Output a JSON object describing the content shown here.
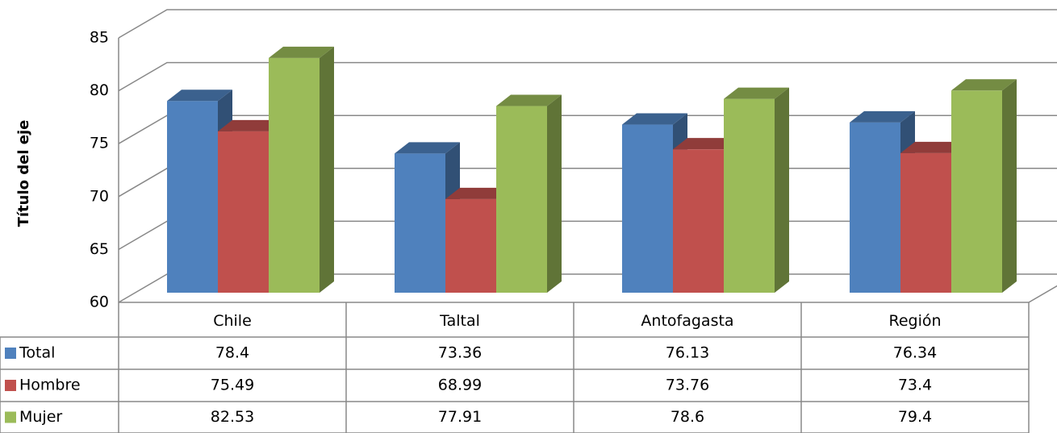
{
  "chart_data": {
    "type": "bar3d",
    "y_label": "Título del eje",
    "categories": [
      "Chile",
      "Taltal",
      "Antofagasta",
      "Región"
    ],
    "series": [
      {
        "name": "Total",
        "color": "#4f81bd",
        "values": [
          78.4,
          73.36,
          76.13,
          76.34
        ]
      },
      {
        "name": "Hombre",
        "color": "#c0504d",
        "values": [
          75.49,
          68.99,
          73.76,
          73.4
        ]
      },
      {
        "name": "Mujer",
        "color": "#9bbb59",
        "values": [
          82.53,
          77.91,
          78.6,
          79.4
        ]
      }
    ],
    "ylim": [
      60,
      85
    ],
    "yticks": [
      60,
      65,
      70,
      75,
      80,
      85
    ],
    "grid": true,
    "data_table": true
  }
}
